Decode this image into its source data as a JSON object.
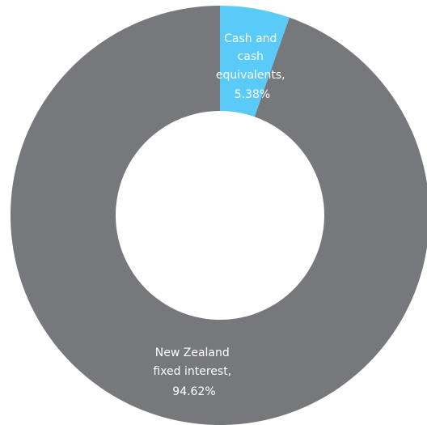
{
  "chart_data": {
    "type": "pie",
    "style": "donut",
    "slices": [
      {
        "name": "Cash and cash equivalents",
        "value": 5.38,
        "color": "#5ACBF8",
        "label_lines": [
          "Cash and",
          "cash",
          "equivalents,",
          "5.38%"
        ]
      },
      {
        "name": "New Zealand fixed interest",
        "value": 94.62,
        "color": "#77787B",
        "label_lines": [
          "New Zealand",
          "fixed interest,",
          "94.62%"
        ]
      }
    ],
    "start_angle_deg": 0,
    "direction": "clockwise",
    "legend": "none"
  }
}
